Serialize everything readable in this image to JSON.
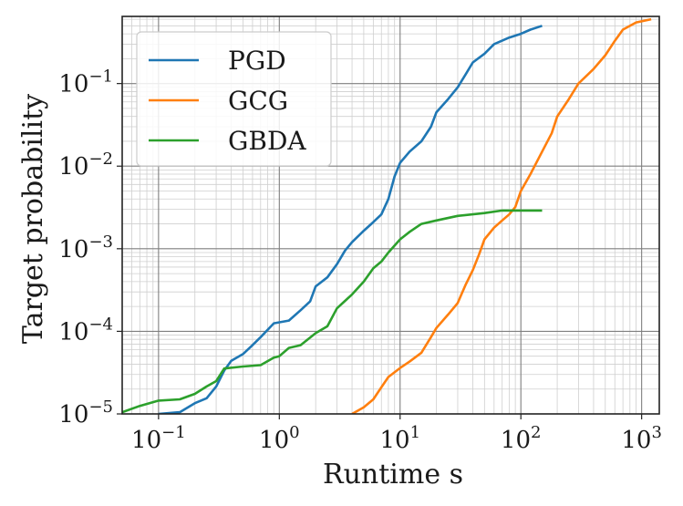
{
  "chart_data": {
    "type": "line",
    "title": "",
    "xlabel": "Runtime s",
    "ylabel": "Target probability",
    "xscale": "log",
    "yscale": "log",
    "xlim": [
      0.05,
      1400
    ],
    "ylim": [
      1e-05,
      0.65
    ],
    "grid": "major and minor",
    "legend_position": "top-left",
    "x_ticks": [
      {
        "value": 0.1,
        "base": "10",
        "exp": "−1"
      },
      {
        "value": 1,
        "base": "10",
        "exp": "0"
      },
      {
        "value": 10,
        "base": "10",
        "exp": "1"
      },
      {
        "value": 100,
        "base": "10",
        "exp": "2"
      },
      {
        "value": 1000,
        "base": "10",
        "exp": "3"
      }
    ],
    "y_ticks": [
      {
        "value": 1e-05,
        "base": "10",
        "exp": "−5"
      },
      {
        "value": 0.0001,
        "base": "10",
        "exp": "−4"
      },
      {
        "value": 0.001,
        "base": "10",
        "exp": "−3"
      },
      {
        "value": 0.01,
        "base": "10",
        "exp": "−2"
      },
      {
        "value": 0.1,
        "base": "10",
        "exp": "−1"
      }
    ],
    "series": [
      {
        "name": "PGD",
        "color": "#1f77b4",
        "points": [
          [
            0.1,
            1e-05
          ],
          [
            0.15,
            1.05e-05
          ],
          [
            0.2,
            1.35e-05
          ],
          [
            0.25,
            1.55e-05
          ],
          [
            0.3,
            2.15e-05
          ],
          [
            0.35,
            3.35e-05
          ],
          [
            0.4,
            4.4e-05
          ],
          [
            0.5,
            5.3e-05
          ],
          [
            0.6,
            6.8e-05
          ],
          [
            0.7,
            8.5e-05
          ],
          [
            0.9,
            0.000125
          ],
          [
            1.2,
            0.000135
          ],
          [
            1.5,
            0.00018
          ],
          [
            1.8,
            0.00023
          ],
          [
            2.0,
            0.00035
          ],
          [
            2.5,
            0.00045
          ],
          [
            3.0,
            0.00065
          ],
          [
            3.5,
            0.00095
          ],
          [
            4.0,
            0.0012
          ],
          [
            5.0,
            0.00165
          ],
          [
            6.0,
            0.0021
          ],
          [
            7.0,
            0.0026
          ],
          [
            8.0,
            0.004
          ],
          [
            9.0,
            0.0075
          ],
          [
            10.0,
            0.011
          ],
          [
            12.0,
            0.015
          ],
          [
            15.0,
            0.02
          ],
          [
            18.0,
            0.03
          ],
          [
            20.0,
            0.045
          ],
          [
            25.0,
            0.065
          ],
          [
            30.0,
            0.09
          ],
          [
            35.0,
            0.13
          ],
          [
            40.0,
            0.18
          ],
          [
            50.0,
            0.23
          ],
          [
            60.0,
            0.3
          ],
          [
            80.0,
            0.36
          ],
          [
            100.0,
            0.4
          ],
          [
            120.0,
            0.45
          ],
          [
            150.0,
            0.5
          ]
        ]
      },
      {
        "name": "GCG",
        "color": "#ff7f0e",
        "points": [
          [
            4.0,
            1e-05
          ],
          [
            5.0,
            1.2e-05
          ],
          [
            6.0,
            1.5e-05
          ],
          [
            7.0,
            2.1e-05
          ],
          [
            8.0,
            2.8e-05
          ],
          [
            10.0,
            3.6e-05
          ],
          [
            12.0,
            4.3e-05
          ],
          [
            15.0,
            5.5e-05
          ],
          [
            18.0,
            8.5e-05
          ],
          [
            20.0,
            0.00011
          ],
          [
            25.0,
            0.00016
          ],
          [
            30.0,
            0.00022
          ],
          [
            35.0,
            0.00037
          ],
          [
            40.0,
            0.00055
          ],
          [
            45.0,
            0.00085
          ],
          [
            50.0,
            0.0013
          ],
          [
            60.0,
            0.0018
          ],
          [
            70.0,
            0.0022
          ],
          [
            80.0,
            0.0026
          ],
          [
            90.0,
            0.0032
          ],
          [
            100.0,
            0.005
          ],
          [
            120.0,
            0.008
          ],
          [
            150.0,
            0.015
          ],
          [
            180.0,
            0.025
          ],
          [
            200.0,
            0.04
          ],
          [
            250.0,
            0.065
          ],
          [
            300.0,
            0.1
          ],
          [
            400.0,
            0.15
          ],
          [
            500.0,
            0.22
          ],
          [
            600.0,
            0.33
          ],
          [
            700.0,
            0.45
          ],
          [
            900.0,
            0.55
          ],
          [
            1200.0,
            0.6
          ]
        ]
      },
      {
        "name": "GBDA",
        "color": "#2ca02c",
        "points": [
          [
            0.05,
            1.05e-05
          ],
          [
            0.07,
            1.25e-05
          ],
          [
            0.1,
            1.45e-05
          ],
          [
            0.15,
            1.5e-05
          ],
          [
            0.2,
            1.75e-05
          ],
          [
            0.25,
            2.15e-05
          ],
          [
            0.3,
            2.5e-05
          ],
          [
            0.35,
            3.55e-05
          ],
          [
            0.5,
            3.75e-05
          ],
          [
            0.7,
            3.9e-05
          ],
          [
            0.9,
            4.8e-05
          ],
          [
            1.0,
            5e-05
          ],
          [
            1.2,
            6.3e-05
          ],
          [
            1.5,
            6.8e-05
          ],
          [
            2.0,
            9.5e-05
          ],
          [
            2.5,
            0.000115
          ],
          [
            3.0,
            0.00019
          ],
          [
            4.0,
            0.00028
          ],
          [
            5.0,
            0.0004
          ],
          [
            6.0,
            0.00058
          ],
          [
            7.0,
            0.0007
          ],
          [
            8.0,
            0.0009
          ],
          [
            10.0,
            0.0013
          ],
          [
            12.0,
            0.0016
          ],
          [
            15.0,
            0.002
          ],
          [
            20.0,
            0.0022
          ],
          [
            30.0,
            0.0025
          ],
          [
            50.0,
            0.0027
          ],
          [
            70.0,
            0.0029
          ],
          [
            100.0,
            0.0029
          ],
          [
            150.0,
            0.0029
          ]
        ]
      }
    ]
  }
}
